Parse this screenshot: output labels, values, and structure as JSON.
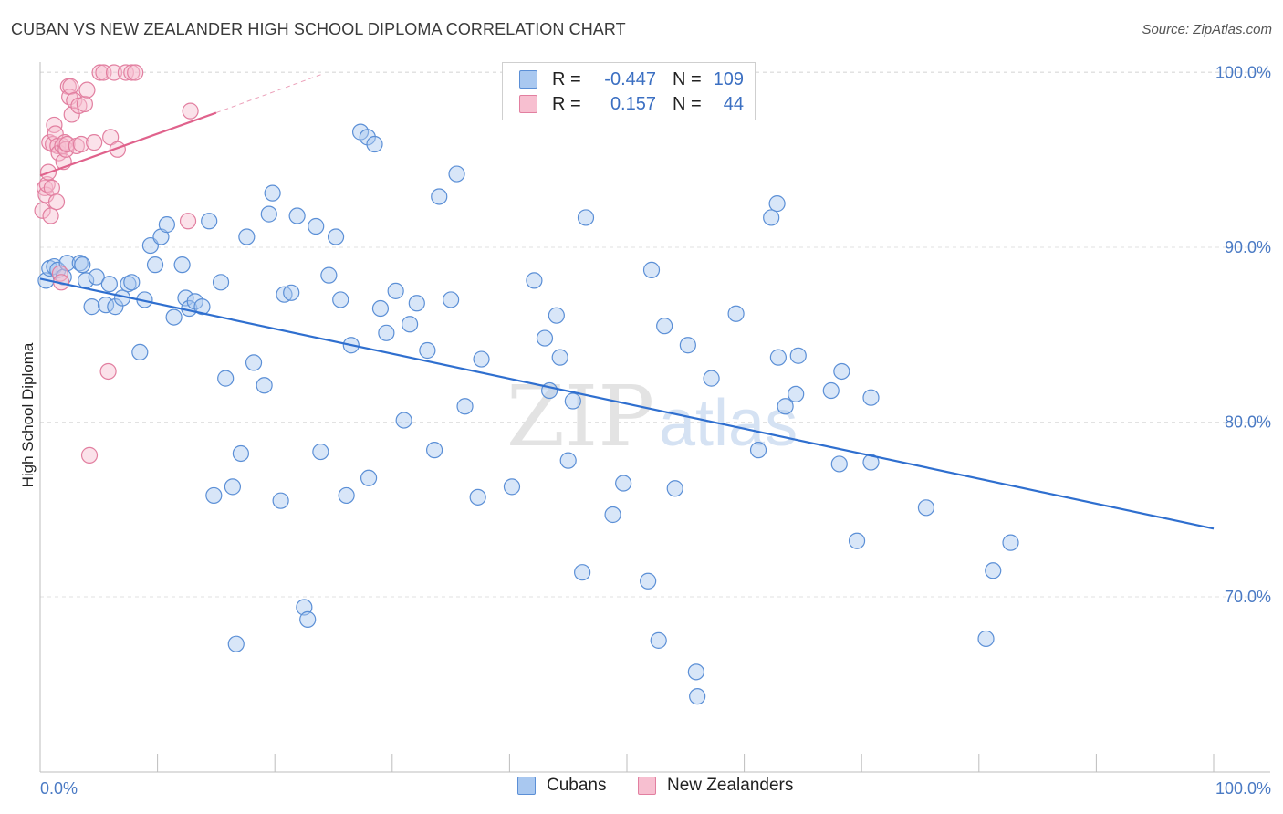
{
  "title": "CUBAN VS NEW ZEALANDER HIGH SCHOOL DIPLOMA CORRELATION CHART",
  "source": "Source: ZipAtlas.com",
  "watermark": {
    "zip": "ZIP",
    "atlas": "atlas"
  },
  "legend": {
    "rows": [
      {
        "r_label": "R =",
        "r_value": "-0.447",
        "n_label": "N =",
        "n_value": "109",
        "color": "#a9c8f0",
        "border": "#5b8fd6"
      },
      {
        "r_label": "R =",
        "r_value": "0.157",
        "n_label": "N =",
        "n_value": "44",
        "color": "#f7bfd0",
        "border": "#e27fa0"
      }
    ]
  },
  "bottom_legend": [
    {
      "label": "Cubans",
      "color": "#a9c8f0",
      "border": "#5b8fd6"
    },
    {
      "label": "New Zealanders",
      "color": "#f7bfd0",
      "border": "#e27fa0"
    }
  ],
  "chart_data": {
    "type": "scatter",
    "title": "CUBAN VS NEW ZEALANDER HIGH SCHOOL DIPLOMA CORRELATION CHART",
    "xlabel": "",
    "ylabel": "High School Diploma",
    "xlim": [
      0,
      100
    ],
    "ylim": [
      60.5,
      101.5
    ],
    "x_tick_labels": [
      "0.0%",
      "100.0%"
    ],
    "y_ticks": [
      70,
      80,
      90,
      100
    ],
    "y_tick_labels": [
      "70.0%",
      "80.0%",
      "90.0%",
      "100.0%"
    ],
    "grid": "horizontal dashed",
    "legend_position": "top-center",
    "series": [
      {
        "name": "Cubans",
        "color": "#5b8fd6",
        "fill": "#a9c8f0",
        "trend": {
          "x": [
            0,
            100
          ],
          "y": [
            88.2,
            73.9
          ],
          "color": "#2f6fcf"
        },
        "points": [
          [
            0.5,
            88.1
          ],
          [
            0.8,
            88.8
          ],
          [
            1.2,
            88.9
          ],
          [
            1.5,
            88.7
          ],
          [
            2.0,
            88.3
          ],
          [
            2.3,
            89.1
          ],
          [
            3.4,
            89.1
          ],
          [
            3.6,
            89.0
          ],
          [
            3.9,
            88.1
          ],
          [
            4.4,
            86.6
          ],
          [
            4.8,
            88.3
          ],
          [
            5.6,
            86.7
          ],
          [
            5.9,
            87.9
          ],
          [
            6.4,
            86.6
          ],
          [
            7.0,
            87.1
          ],
          [
            7.5,
            87.9
          ],
          [
            7.8,
            88.0
          ],
          [
            8.5,
            84.0
          ],
          [
            8.9,
            87.0
          ],
          [
            9.4,
            90.1
          ],
          [
            9.8,
            89.0
          ],
          [
            10.3,
            90.6
          ],
          [
            10.8,
            91.3
          ],
          [
            11.4,
            86.0
          ],
          [
            12.1,
            89.0
          ],
          [
            12.4,
            87.1
          ],
          [
            12.7,
            86.5
          ],
          [
            13.2,
            86.9
          ],
          [
            13.8,
            86.6
          ],
          [
            14.4,
            91.5
          ],
          [
            14.8,
            75.8
          ],
          [
            15.4,
            88.0
          ],
          [
            15.8,
            82.5
          ],
          [
            16.4,
            76.3
          ],
          [
            16.7,
            67.3
          ],
          [
            17.1,
            78.2
          ],
          [
            17.6,
            90.6
          ],
          [
            18.2,
            83.4
          ],
          [
            19.1,
            82.1
          ],
          [
            19.5,
            91.9
          ],
          [
            19.8,
            93.1
          ],
          [
            20.5,
            75.5
          ],
          [
            20.8,
            87.3
          ],
          [
            21.4,
            87.4
          ],
          [
            21.9,
            91.8
          ],
          [
            22.5,
            69.4
          ],
          [
            22.8,
            68.7
          ],
          [
            23.5,
            91.2
          ],
          [
            23.9,
            78.3
          ],
          [
            24.6,
            88.4
          ],
          [
            25.2,
            90.6
          ],
          [
            25.6,
            87.0
          ],
          [
            26.1,
            75.8
          ],
          [
            26.5,
            84.4
          ],
          [
            27.3,
            96.6
          ],
          [
            27.9,
            96.3
          ],
          [
            28.0,
            76.8
          ],
          [
            28.5,
            95.9
          ],
          [
            29.0,
            86.5
          ],
          [
            29.5,
            85.1
          ],
          [
            30.3,
            87.5
          ],
          [
            31.0,
            80.1
          ],
          [
            31.5,
            85.6
          ],
          [
            32.1,
            86.8
          ],
          [
            33.0,
            84.1
          ],
          [
            33.6,
            78.4
          ],
          [
            34.0,
            92.9
          ],
          [
            35.0,
            87.0
          ],
          [
            35.5,
            94.2
          ],
          [
            36.2,
            80.9
          ],
          [
            37.3,
            75.7
          ],
          [
            37.6,
            83.6
          ],
          [
            40.2,
            76.3
          ],
          [
            42.1,
            88.1
          ],
          [
            43.0,
            84.8
          ],
          [
            43.4,
            81.8
          ],
          [
            44.0,
            86.1
          ],
          [
            44.3,
            83.7
          ],
          [
            45.0,
            77.8
          ],
          [
            45.4,
            81.2
          ],
          [
            46.2,
            71.4
          ],
          [
            46.5,
            91.7
          ],
          [
            48.8,
            74.7
          ],
          [
            49.7,
            76.5
          ],
          [
            51.8,
            70.9
          ],
          [
            52.1,
            88.7
          ],
          [
            53.2,
            85.5
          ],
          [
            54.1,
            76.2
          ],
          [
            55.2,
            84.4
          ],
          [
            55.9,
            65.7
          ],
          [
            57.2,
            82.5
          ],
          [
            59.3,
            86.2
          ],
          [
            61.2,
            78.4
          ],
          [
            62.3,
            91.7
          ],
          [
            62.8,
            92.5
          ],
          [
            62.9,
            83.7
          ],
          [
            63.5,
            80.9
          ],
          [
            64.4,
            81.6
          ],
          [
            64.6,
            83.8
          ],
          [
            67.4,
            81.8
          ],
          [
            68.1,
            77.6
          ],
          [
            68.3,
            82.9
          ],
          [
            69.6,
            73.2
          ],
          [
            70.8,
            77.7
          ],
          [
            70.8,
            81.4
          ],
          [
            75.5,
            75.1
          ],
          [
            80.6,
            67.6
          ],
          [
            81.2,
            71.5
          ],
          [
            82.7,
            73.1
          ],
          [
            52.7,
            67.5
          ],
          [
            56.0,
            64.3
          ]
        ]
      },
      {
        "name": "New Zealanders",
        "color": "#e27fa0",
        "fill": "#f7bfd0",
        "trend": {
          "x": [
            0,
            15
          ],
          "y": [
            94.1,
            97.7
          ],
          "color": "#e0628c",
          "dashed_extension": {
            "x": [
              15,
              24
            ],
            "y": [
              97.7,
              99.9
            ]
          }
        },
        "points": [
          [
            0.2,
            92.1
          ],
          [
            0.4,
            93.4
          ],
          [
            0.5,
            93.0
          ],
          [
            0.6,
            93.6
          ],
          [
            0.7,
            94.3
          ],
          [
            0.8,
            96.0
          ],
          [
            0.9,
            91.8
          ],
          [
            1.0,
            93.4
          ],
          [
            1.1,
            95.9
          ],
          [
            1.2,
            97.0
          ],
          [
            1.3,
            96.5
          ],
          [
            1.4,
            92.6
          ],
          [
            1.5,
            95.8
          ],
          [
            1.6,
            95.4
          ],
          [
            1.7,
            88.5
          ],
          [
            1.8,
            88.0
          ],
          [
            1.9,
            95.8
          ],
          [
            2.0,
            94.9
          ],
          [
            2.1,
            96.0
          ],
          [
            2.2,
            95.6
          ],
          [
            2.3,
            95.9
          ],
          [
            2.4,
            99.2
          ],
          [
            2.5,
            98.6
          ],
          [
            2.6,
            99.2
          ],
          [
            2.7,
            97.6
          ],
          [
            2.9,
            98.4
          ],
          [
            3.1,
            95.8
          ],
          [
            3.3,
            98.1
          ],
          [
            3.5,
            95.9
          ],
          [
            3.8,
            98.2
          ],
          [
            4.0,
            99.0
          ],
          [
            4.2,
            78.1
          ],
          [
            4.6,
            96.0
          ],
          [
            5.1,
            100.0
          ],
          [
            5.4,
            100.0
          ],
          [
            5.8,
            82.9
          ],
          [
            6.0,
            96.3
          ],
          [
            6.3,
            100.0
          ],
          [
            6.6,
            95.6
          ],
          [
            7.3,
            100.0
          ],
          [
            7.8,
            100.0
          ],
          [
            8.1,
            100.0
          ],
          [
            12.6,
            91.5
          ],
          [
            12.8,
            97.8
          ]
        ]
      }
    ]
  }
}
